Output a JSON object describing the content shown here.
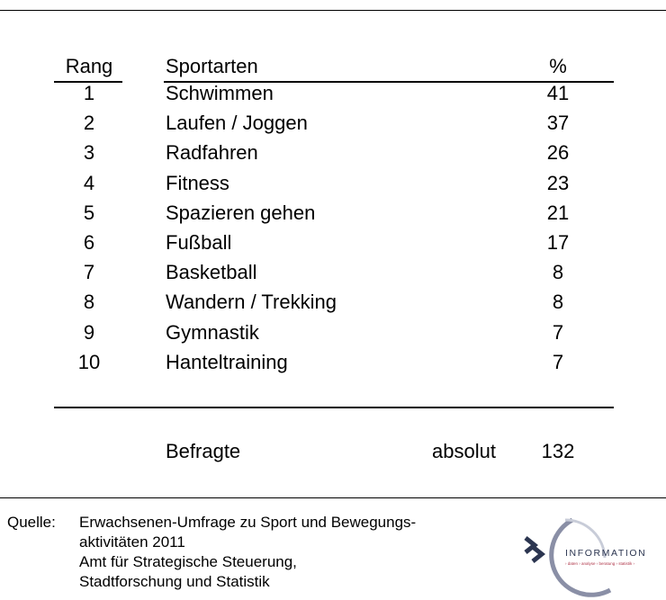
{
  "table": {
    "header": [
      "Rang",
      "Sportarten",
      "%"
    ],
    "rows": [
      [
        1,
        "Schwimmen",
        41
      ],
      [
        2,
        "Laufen / Joggen",
        37
      ],
      [
        3,
        "Radfahren",
        26
      ],
      [
        4,
        "Fitness",
        23
      ],
      [
        5,
        "Spazieren gehen",
        21
      ],
      [
        6,
        "Fußball",
        17
      ],
      [
        7,
        "Basketball",
        8
      ],
      [
        8,
        "Wandern / Trekking",
        8
      ],
      [
        9,
        "Gymnastik",
        7
      ],
      [
        10,
        "Hanteltraining",
        7
      ]
    ],
    "summary": {
      "label": "Befragte",
      "kind": "absolut",
      "value": 132
    }
  },
  "footer": {
    "label": "Quelle:",
    "lines": [
      "Erwachsenen-Umfrage zu Sport und Bewegungs-",
      "aktivitäten 2011",
      "Amt für Strategische Steuerung,",
      "Stadtforschung und Statistik"
    ]
  },
  "logo": {
    "name": "INFORMATION",
    "tagline": "› daten › analyse › beratung › statistik ›"
  }
}
